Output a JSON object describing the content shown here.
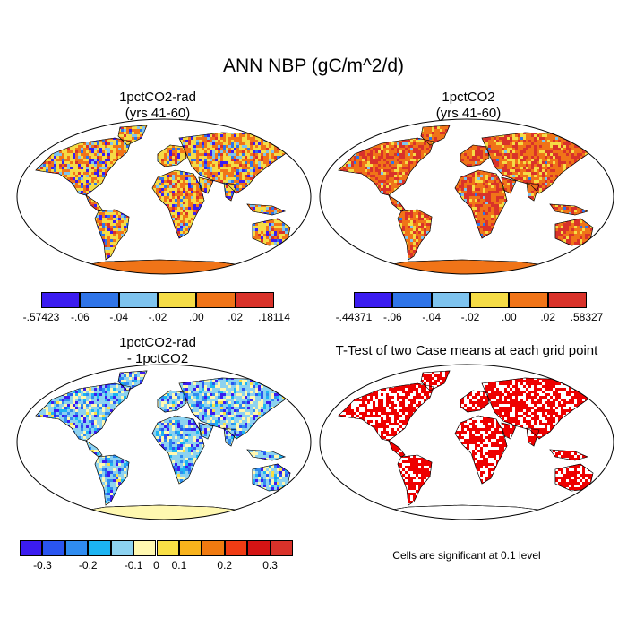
{
  "figure": {
    "title": "ANN NBP (gC/m^2/d)"
  },
  "panels": [
    {
      "title_line1": "1pctCO2-rad",
      "title_line2": "(yrs 41-60)",
      "colorbar": {
        "colors": [
          "#3b1cf0",
          "#2f74e8",
          "#7ec3ee",
          "#f5dc46",
          "#f07418",
          "#d9322a"
        ],
        "labels": [
          "-.57423",
          "-.06",
          "-.04",
          "-.02",
          ".00",
          ".02",
          ".18114"
        ]
      },
      "land_fill": "#f0a030",
      "antarctica_fill": "#f07418"
    },
    {
      "title_line1": "1pctCO2",
      "title_line2": "(yrs 41-60)",
      "colorbar": {
        "colors": [
          "#3b1cf0",
          "#2f74e8",
          "#7ec3ee",
          "#f5dc46",
          "#f07418",
          "#d9322a"
        ],
        "labels": [
          "-.44371",
          "-.06",
          "-.04",
          "-.02",
          ".00",
          ".02",
          ".58327"
        ]
      },
      "land_fill": "#e05a20",
      "antarctica_fill": "#f07418"
    },
    {
      "title_line1": "1pctCO2-rad",
      "title_line2": "- 1pctCO2",
      "colorbar": {
        "colors": [
          "#3b1cf0",
          "#2a55f0",
          "#2f8cf0",
          "#1cb4f2",
          "#8cd2f0",
          "#fff8b0",
          "#f9e046",
          "#f7b21c",
          "#f07a10",
          "#f03c14",
          "#d41414",
          "#d9322a"
        ],
        "labels": [
          "-0.3",
          "-0.2",
          "-0.1",
          "0",
          "0.1",
          "0.2",
          "0.3"
        ]
      },
      "land_fill": "#b8dcf2",
      "antarctica_fill": "#fff8b0"
    },
    {
      "title_line1": "T-Test of two Case means at each grid point",
      "note": "Cells are significant at 0.1 level",
      "land_fill": "#ffffff",
      "signif_fill": "#ee0000"
    }
  ]
}
